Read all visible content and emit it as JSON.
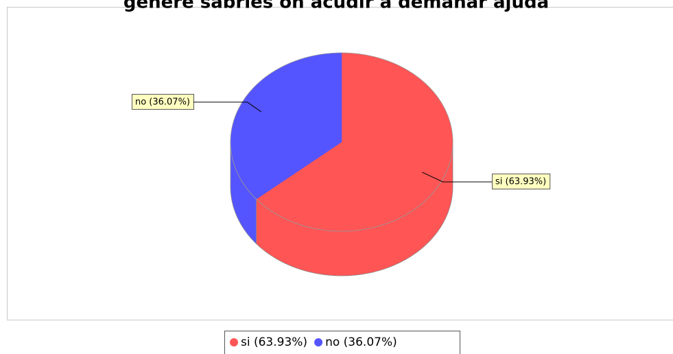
{
  "chart_data": {
    "type": "pie3d",
    "title": "genere sabries on acudir a demanar ajuda",
    "categories": [
      "si",
      "no"
    ],
    "values": [
      63.93,
      36.07
    ],
    "value_labels": [
      "si (63.93%)",
      "no (36.07%)"
    ],
    "colors": [
      "#ff5555",
      "#5555ff"
    ],
    "legend": "bottom"
  }
}
